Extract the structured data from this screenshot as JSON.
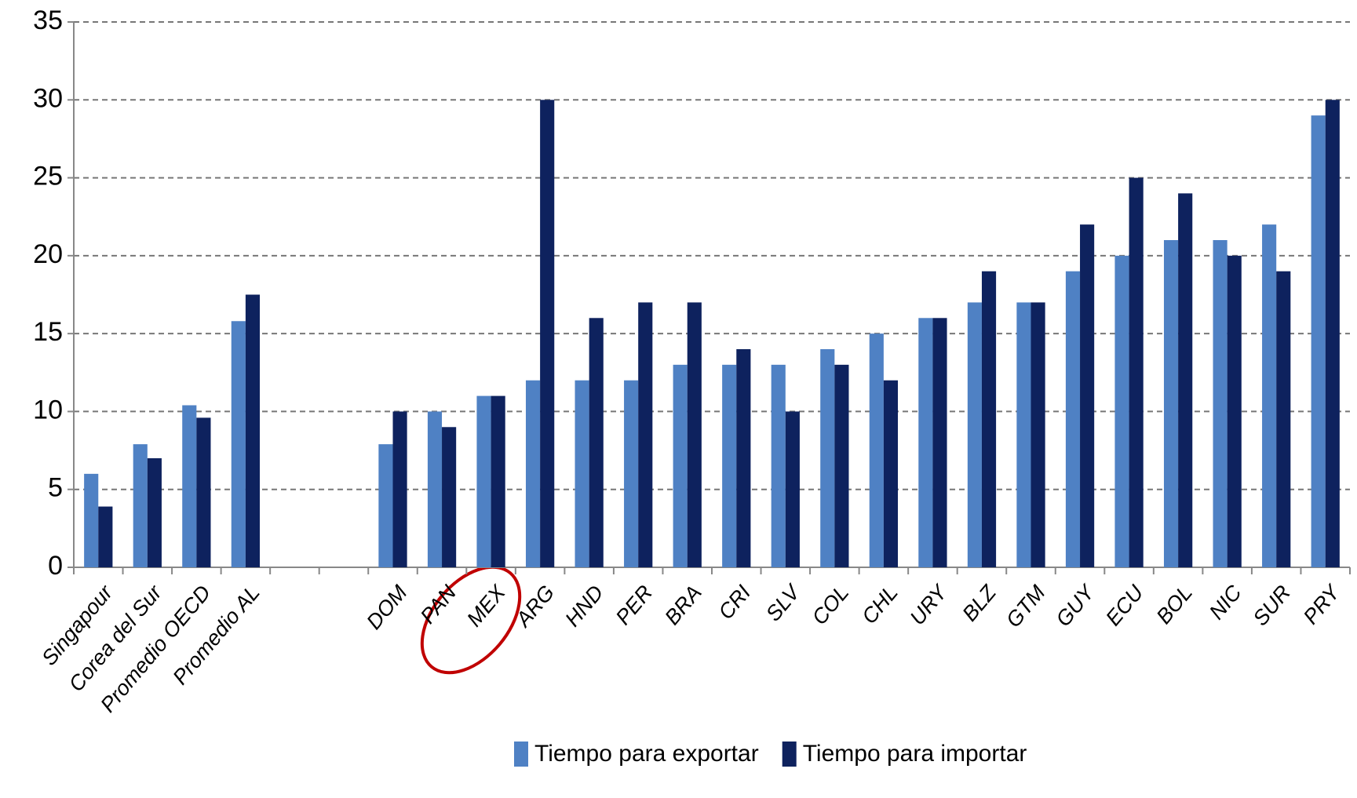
{
  "chart_data": {
    "type": "bar",
    "categories": [
      "Singapour",
      "Corea del Sur",
      "Promedio OECD",
      "Promedio AL",
      null,
      null,
      "DOM",
      "PAN",
      "MEX",
      "ARG",
      "HND",
      "PER",
      "BRA",
      "CRI",
      "SLV",
      "COL",
      "CHL",
      "URY",
      "BLZ",
      "GTM",
      "GUY",
      "ECU",
      "BOL",
      "NIC",
      "SUR",
      "PRY"
    ],
    "series": [
      {
        "name": "Tiempo para exportar",
        "color": "#4f81c4",
        "values": [
          6,
          7.9,
          10.4,
          15.8,
          null,
          null,
          7.9,
          10,
          11,
          12,
          12,
          12,
          13,
          13,
          13,
          14,
          15,
          16,
          17,
          17,
          19,
          20,
          21,
          21,
          22,
          29
        ]
      },
      {
        "name": "Tiempo para importar",
        "color": "#0e225e",
        "values": [
          3.9,
          7,
          9.6,
          17.5,
          null,
          null,
          10,
          9,
          11,
          30,
          16,
          17,
          17,
          14,
          10,
          13,
          12,
          16,
          19,
          17,
          22,
          25,
          24,
          20,
          19,
          30
        ]
      }
    ],
    "ylim": [
      0,
      35
    ],
    "yticks": [
      0,
      5,
      10,
      15,
      20,
      25,
      30,
      35
    ],
    "grid": true
  }
}
